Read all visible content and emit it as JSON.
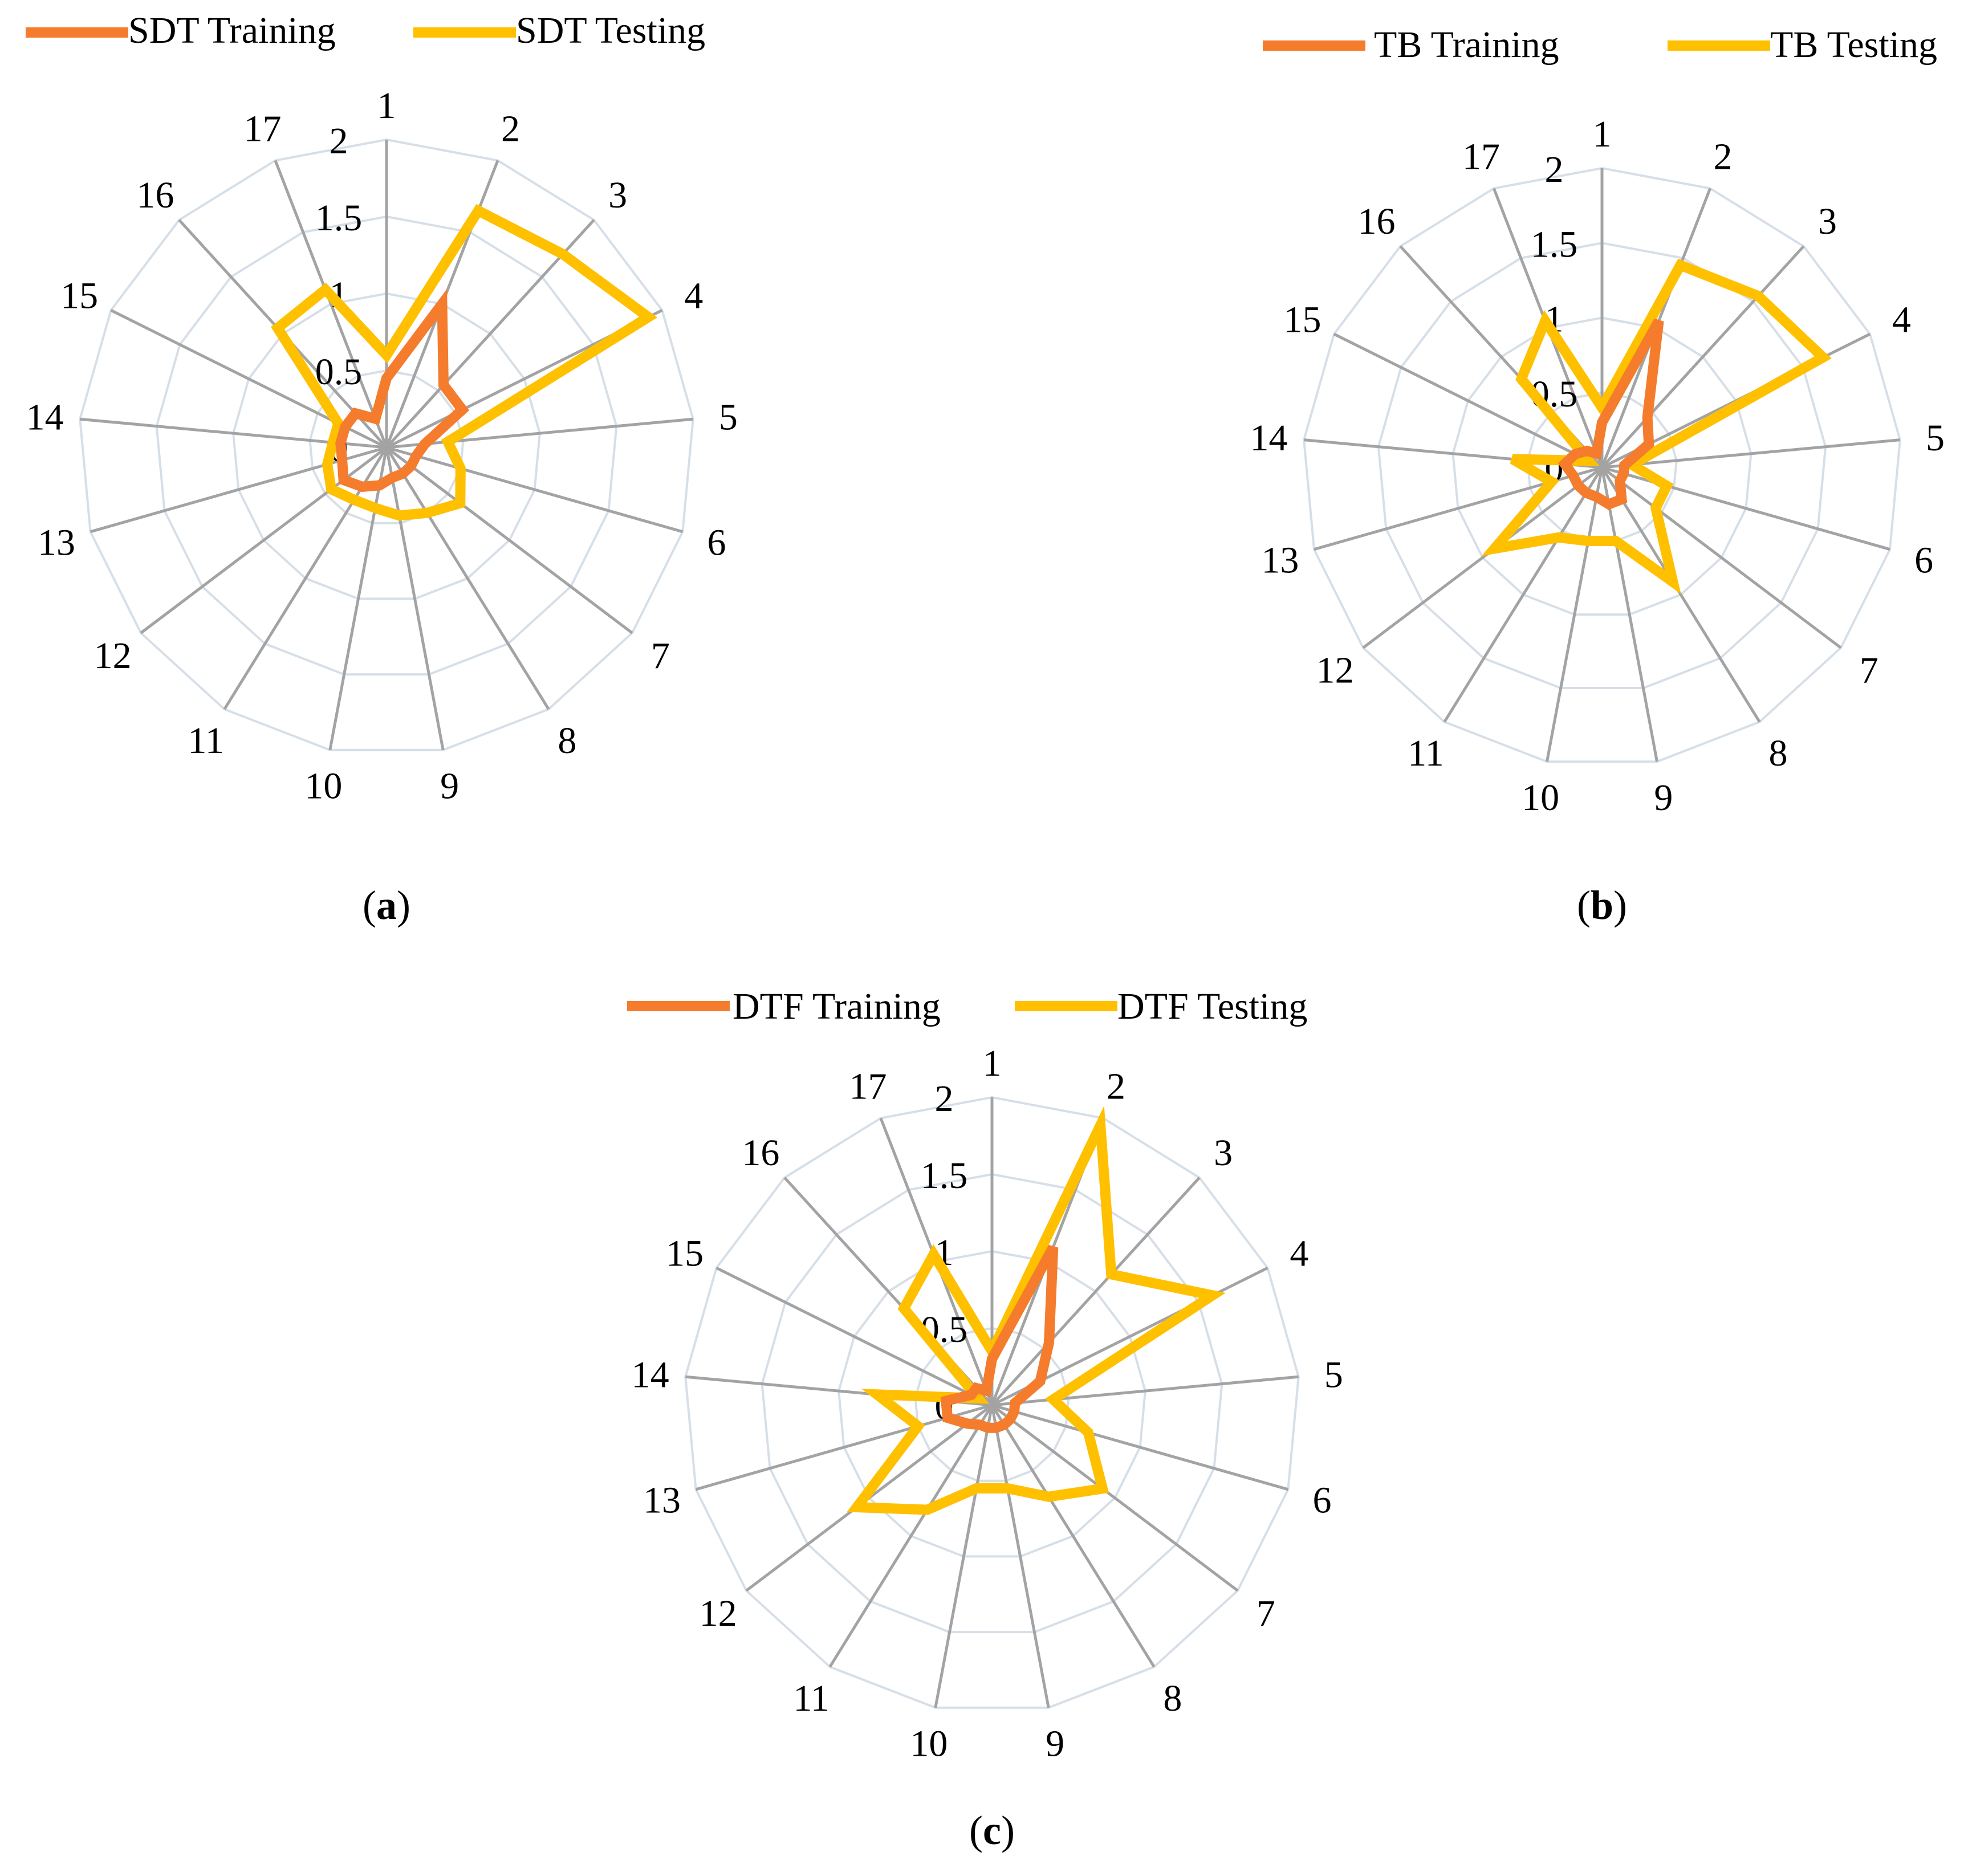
{
  "colors": {
    "training": "#F47C2C",
    "testing": "#FFC000",
    "grid": "#D6DFE8",
    "spoke": "#A3A3A3"
  },
  "chart_data": [
    {
      "id": "a",
      "type": "radar",
      "panel_label": "a",
      "categories": [
        "1",
        "2",
        "3",
        "4",
        "5",
        "6",
        "7",
        "8",
        "9",
        "10",
        "11",
        "12",
        "13",
        "14",
        "15",
        "16",
        "17"
      ],
      "radial_ticks": [
        "0",
        "0.5",
        "1",
        "1.5",
        "2"
      ],
      "rlim": [
        0,
        2
      ],
      "legend_position": "top-left",
      "series": [
        {
          "name": "SDT Training",
          "key": "training",
          "values": [
            0.45,
            1.0,
            0.55,
            0.55,
            0.25,
            0.2,
            0.2,
            0.2,
            0.2,
            0.25,
            0.3,
            0.35,
            0.3,
            0.3,
            0.3,
            0.3,
            0.2
          ]
        },
        {
          "name": "SDT Testing",
          "key": "testing",
          "values": [
            0.6,
            1.65,
            1.7,
            1.9,
            0.4,
            0.5,
            0.6,
            0.5,
            0.45,
            0.4,
            0.4,
            0.45,
            0.4,
            0.35,
            0.35,
            1.05,
            1.1
          ]
        }
      ]
    },
    {
      "id": "b",
      "type": "radar",
      "panel_label": "b",
      "categories": [
        "1",
        "2",
        "3",
        "4",
        "5",
        "6",
        "7",
        "8",
        "9",
        "10",
        "11",
        "12",
        "13",
        "14",
        "15",
        "16",
        "17"
      ],
      "radial_ticks": [
        "0",
        "0.5",
        "1",
        "1.5",
        "2"
      ],
      "rlim": [
        0,
        2
      ],
      "legend_position": "top-right",
      "series": [
        {
          "name": "TB Training",
          "key": "training",
          "values": [
            0.3,
            1.05,
            0.45,
            0.35,
            0.15,
            0.15,
            0.15,
            0.25,
            0.25,
            0.2,
            0.2,
            0.2,
            0.2,
            0.25,
            0.2,
            0.15,
            0.1
          ]
        },
        {
          "name": "TB Testing",
          "key": "testing",
          "values": [
            0.4,
            1.45,
            1.55,
            1.65,
            0.2,
            0.45,
            0.45,
            0.9,
            0.5,
            0.5,
            0.55,
            0.9,
            0.35,
            0.6,
            0.1,
            0.8,
            1.05
          ]
        }
      ]
    },
    {
      "id": "c",
      "type": "radar",
      "panel_label": "c",
      "categories": [
        "1",
        "2",
        "3",
        "4",
        "5",
        "6",
        "7",
        "8",
        "9",
        "10",
        "11",
        "12",
        "13",
        "14",
        "15",
        "16",
        "17"
      ],
      "radial_ticks": [
        "0",
        "0.5",
        "1",
        "1.5",
        "2"
      ],
      "rlim": [
        0,
        2
      ],
      "legend_position": "top-center",
      "series": [
        {
          "name": "DTF Training",
          "key": "training",
          "values": [
            0.3,
            1.1,
            0.55,
            0.35,
            0.15,
            0.15,
            0.15,
            0.15,
            0.15,
            0.15,
            0.15,
            0.2,
            0.3,
            0.3,
            0.15,
            0.15,
            0.1
          ]
        },
        {
          "name": "DTF Testing",
          "key": "testing",
          "values": [
            0.35,
            1.95,
            1.15,
            1.6,
            0.4,
            0.65,
            0.9,
            0.7,
            0.55,
            0.55,
            0.8,
            1.1,
            0.5,
            0.75,
            0.1,
            0.85,
            1.05
          ]
        }
      ]
    }
  ]
}
